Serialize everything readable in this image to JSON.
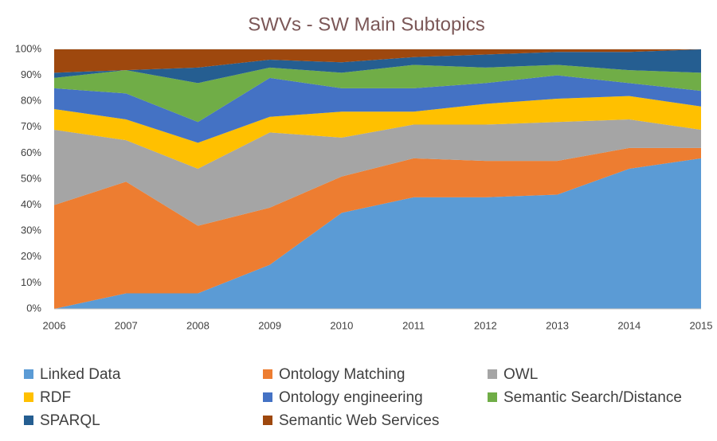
{
  "chart_data": {
    "type": "stacked_area",
    "title": "SWVs - SW  Main Subtopics",
    "categories": [
      "2006",
      "2007",
      "2008",
      "2009",
      "2010",
      "2011",
      "2012",
      "2013",
      "2014",
      "2015"
    ],
    "series": [
      {
        "name": "Linked Data",
        "color": "#5b9bd5",
        "values": [
          0,
          6,
          6,
          17,
          37,
          43,
          43,
          44,
          54,
          58
        ]
      },
      {
        "name": "Ontology Matching",
        "color": "#ed7d31",
        "values": [
          40,
          43,
          26,
          22,
          14,
          15,
          14,
          13,
          8,
          4
        ]
      },
      {
        "name": "OWL",
        "color": "#a5a5a5",
        "values": [
          29,
          16,
          22,
          29,
          15,
          13,
          14,
          15,
          11,
          7
        ]
      },
      {
        "name": "RDF",
        "color": "#ffc000",
        "values": [
          8,
          8,
          10,
          6,
          10,
          5,
          8,
          9,
          9,
          9
        ]
      },
      {
        "name": "Ontology engineering",
        "color": "#4472c4",
        "values": [
          8,
          10,
          8,
          15,
          9,
          9,
          8,
          9,
          5,
          6
        ]
      },
      {
        "name": "Semantic Search/Distance",
        "color": "#70ad47",
        "values": [
          4,
          9,
          15,
          4,
          6,
          9,
          6,
          4,
          5,
          7
        ]
      },
      {
        "name": "SPARQL",
        "color": "#255e91",
        "values": [
          2,
          0,
          6,
          3,
          4,
          3,
          5,
          5,
          7,
          9
        ]
      },
      {
        "name": "Semantic Web Services",
        "color": "#9e480e",
        "values": [
          9,
          8,
          7,
          4,
          5,
          3,
          2,
          1,
          1,
          0
        ]
      }
    ],
    "ylim": [
      0,
      100
    ],
    "yticks": [
      {
        "value": 0,
        "label": "0%"
      },
      {
        "value": 10,
        "label": "10%"
      },
      {
        "value": 20,
        "label": "20%"
      },
      {
        "value": 30,
        "label": "30%"
      },
      {
        "value": 40,
        "label": "40%"
      },
      {
        "value": 50,
        "label": "50%"
      },
      {
        "value": 60,
        "label": "60%"
      },
      {
        "value": 70,
        "label": "70%"
      },
      {
        "value": 80,
        "label": "80%"
      },
      {
        "value": 90,
        "label": "90%"
      },
      {
        "value": 100,
        "label": "100%"
      }
    ],
    "grid": true
  }
}
